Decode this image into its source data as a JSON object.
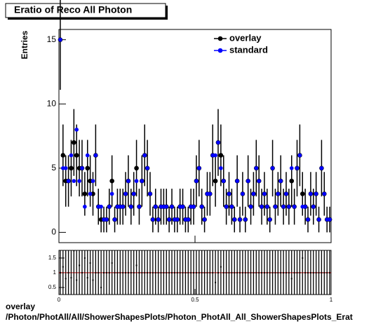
{
  "chart_data": [
    {
      "type": "errorbar-scatter",
      "title": "Eratio of Reco All Photon",
      "y_label": "Entries",
      "xlim": [
        0,
        1
      ],
      "ylim": [
        -0.8,
        15.8
      ],
      "yticks": [
        0,
        5,
        10,
        15
      ],
      "legend": "top-right",
      "series": [
        {
          "name": "overlay",
          "color": "#000000",
          "values": [
            15,
            6,
            4,
            4,
            5,
            7,
            6,
            5,
            5,
            3,
            5,
            4,
            3,
            6,
            2,
            1,
            1,
            1,
            2,
            4,
            1,
            2,
            2,
            2,
            3,
            4,
            2,
            3,
            5,
            2,
            4,
            6,
            5,
            3,
            1,
            2,
            1,
            2,
            2,
            2,
            1,
            2,
            1,
            1,
            2,
            2,
            1,
            1,
            2,
            2,
            4,
            5,
            2,
            1,
            3,
            3,
            6,
            4,
            7,
            6,
            4,
            2,
            3,
            2,
            1,
            4,
            1,
            3,
            1,
            4,
            2,
            3,
            5,
            4,
            2,
            3,
            2,
            1,
            5,
            2,
            3,
            4,
            2,
            3,
            2,
            4,
            2,
            5,
            6,
            3,
            2,
            1,
            3,
            2,
            3,
            1,
            5,
            3,
            1,
            1
          ],
          "errors": [
            3.9,
            2.4,
            2,
            2,
            2.2,
            2.6,
            2.4,
            2.2,
            2.2,
            1.7,
            2.2,
            2,
            1.7,
            2.4,
            1.4,
            1,
            1,
            1,
            1.4,
            2,
            1,
            1.4,
            1.4,
            1.4,
            1.7,
            2,
            1.4,
            1.7,
            2.2,
            1.4,
            2,
            2.4,
            2.2,
            1.7,
            1,
            1.4,
            1,
            1.4,
            1.4,
            1.4,
            1,
            1.4,
            1,
            1,
            1.4,
            1.4,
            1,
            1,
            1.4,
            1.4,
            2,
            2.2,
            1.4,
            1,
            1.7,
            1.7,
            2.4,
            2,
            2.6,
            2.4,
            2,
            1.4,
            1.7,
            1.4,
            1,
            2,
            1,
            1.7,
            1,
            2,
            1.4,
            1.7,
            2.2,
            2,
            1.4,
            1.7,
            1.4,
            1,
            2.2,
            1.4,
            1.7,
            2,
            1.4,
            1.7,
            1.4,
            2,
            1.4,
            2.2,
            2.4,
            1.7,
            1.4,
            1,
            1.7,
            1.4,
            1.7,
            1,
            2.2,
            1.7,
            1,
            1
          ]
        },
        {
          "name": "standard",
          "color": "#0000ff",
          "values": [
            15,
            5,
            5,
            4,
            6,
            4,
            8,
            4,
            5,
            2,
            6,
            3,
            4,
            6,
            2,
            2,
            1,
            1,
            2,
            3,
            1,
            2,
            2,
            2,
            3,
            4,
            2,
            3,
            4,
            2,
            4,
            6,
            5,
            3,
            1,
            2,
            1,
            2,
            2,
            2,
            1,
            2,
            1,
            1,
            2,
            2,
            1,
            1,
            2,
            2,
            4,
            5,
            2,
            1,
            3,
            3,
            6,
            6,
            7,
            5,
            4,
            2,
            3,
            2,
            1,
            4,
            1,
            3,
            1,
            4,
            2,
            3,
            5,
            4,
            2,
            3,
            2,
            1,
            5,
            2,
            3,
            4,
            2,
            3,
            2,
            5,
            2,
            5,
            6,
            2,
            2,
            1,
            3,
            2,
            3,
            1,
            5,
            3,
            1,
            1
          ]
        }
      ]
    },
    {
      "type": "ratio",
      "xlim": [
        0,
        1
      ],
      "xticks": [
        0,
        0.5,
        1
      ],
      "ylim": [
        0.26,
        1.76
      ],
      "yticks": [
        0.5,
        1,
        1.5
      ],
      "reference": 1,
      "reference_color": "#cc0000",
      "values": [
        1,
        1.2,
        0.8,
        1,
        0.83,
        1.75,
        0.75,
        1.25,
        1,
        1.5,
        0.83,
        1.33,
        0.75,
        1,
        1,
        0.5,
        1,
        1,
        1,
        1.33,
        1,
        1,
        1,
        1,
        1,
        1,
        1,
        1,
        1.25,
        1,
        1,
        1,
        1,
        1,
        1,
        1,
        1,
        1,
        1,
        1,
        1,
        1,
        1,
        1,
        1,
        1,
        1,
        1,
        1,
        1,
        1,
        1,
        1,
        1,
        1,
        1,
        1,
        0.67,
        1,
        1.2,
        1,
        1,
        1,
        1,
        1,
        1,
        1,
        1,
        1,
        1,
        1,
        1,
        1,
        1,
        1,
        1,
        1,
        1,
        1,
        1,
        1,
        1,
        1,
        1,
        1,
        0.8,
        1,
        1,
        1,
        1.5,
        1,
        1,
        1,
        1,
        1,
        1,
        1,
        1,
        1,
        1
      ]
    }
  ],
  "footer": {
    "line1": "overlay",
    "line2": "/Photon/PhotAll/All/ShowerShapesPlots/Photon_PhotAll_All_ShowerShapesPlots_Erat"
  }
}
